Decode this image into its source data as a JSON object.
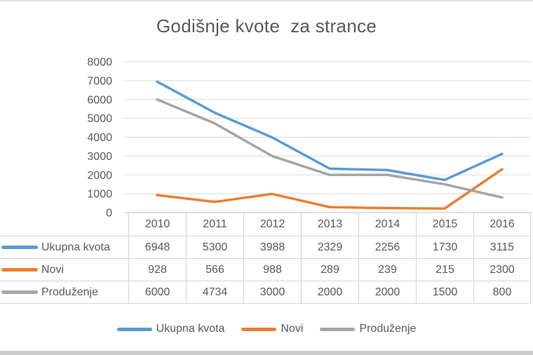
{
  "title": "Godišnje kvote  za strance",
  "chart_data": {
    "type": "line",
    "title": "Godišnje kvote  za strance",
    "categories": [
      "2010",
      "2011",
      "2012",
      "2013",
      "2014",
      "2015",
      "2016"
    ],
    "series": [
      {
        "name": "Ukupna kvota",
        "color": "#5B9BD5",
        "values": [
          6948,
          5300,
          3988,
          2329,
          2256,
          1730,
          3115
        ]
      },
      {
        "name": "Novi",
        "color": "#ED7D31",
        "values": [
          928,
          566,
          988,
          289,
          239,
          215,
          2300
        ]
      },
      {
        "name": "Produženje",
        "color": "#A5A5A5",
        "values": [
          6000,
          4734,
          3000,
          2000,
          2000,
          1500,
          800
        ]
      }
    ],
    "xlabel": "",
    "ylabel": "",
    "ylim": [
      0,
      8000
    ],
    "yticks": [
      0,
      1000,
      2000,
      3000,
      4000,
      5000,
      6000,
      7000,
      8000
    ],
    "grid": true,
    "gridline_color": "#d9d9d9",
    "axis_line_color": "#bfbfbf",
    "legend_position": "bottom",
    "data_table_shown": true
  }
}
